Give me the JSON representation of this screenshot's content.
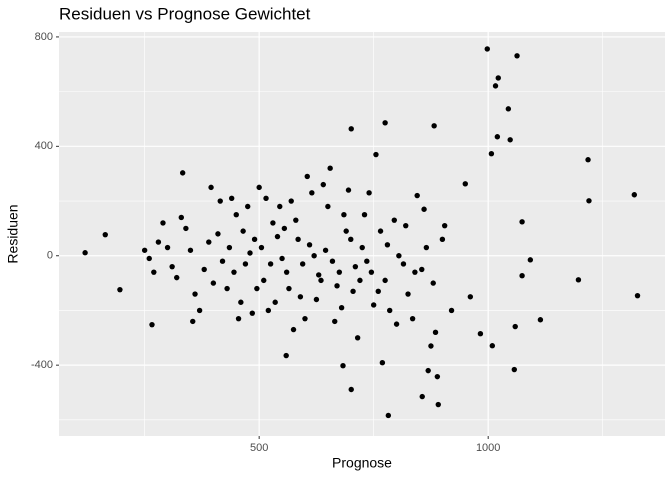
{
  "chart_data": {
    "type": "scatter",
    "title": "Residuen vs Prognose Gewichtet",
    "x_label": "Prognose",
    "y_label": "Residuen",
    "color": "#000000",
    "panel_color": "#ebebeb",
    "grid": true,
    "xlim": [
      63,
      1386
    ],
    "ylim": [
      -659,
      818
    ],
    "xticks": [
      500,
      1000
    ],
    "yticks": [
      -400,
      0,
      400,
      800
    ],
    "xminor": [
      250,
      750,
      1250
    ],
    "yminor": [
      -600,
      -200,
      200,
      600
    ],
    "x": [
      120,
      164,
      196,
      998,
      1063,
      1022,
      1016,
      1044,
      1048,
      1020,
      1007,
      1218,
      1319,
      1220,
      1326,
      1197,
      1114,
      1059,
      1057,
      983,
      1009,
      889,
      869,
      856,
      891,
      782,
      701,
      769,
      683,
      775,
      701,
      882,
      950,
      1074,
      1092,
      1074,
      961,
      559,
      266,
      333,
      350,
      380,
      410,
      430,
      450,
      470,
      490,
      510,
      530,
      550,
      570,
      590,
      610,
      630,
      650,
      670,
      690,
      710,
      730,
      750,
      320,
      340,
      360,
      390,
      420,
      440,
      460,
      480,
      500,
      520,
      540,
      560,
      580,
      600,
      620,
      640,
      660,
      680,
      700,
      720,
      740,
      760,
      780,
      800,
      820,
      840,
      860,
      880,
      900,
      920,
      300,
      310,
      330,
      370,
      400,
      415,
      445,
      465,
      485,
      505,
      525,
      545,
      565,
      585,
      605,
      625,
      645,
      665,
      685,
      705,
      725,
      745,
      765,
      785,
      805,
      825,
      845,
      865,
      885,
      905,
      250,
      270,
      290,
      260,
      280,
      355,
      395,
      435,
      455,
      475,
      495,
      515,
      535,
      555,
      575,
      595,
      615,
      635,
      655,
      675,
      695,
      715,
      735,
      755,
      775,
      795,
      815,
      835,
      855,
      875
    ],
    "y": [
      11,
      77,
      -124,
      756,
      731,
      650,
      621,
      537,
      424,
      435,
      373,
      351,
      223,
      201,
      -146,
      -88,
      -234,
      -259,
      -416,
      -285,
      -329,
      -442,
      -420,
      -515,
      -544,
      -584,
      -489,
      -391,
      -402,
      486,
      464,
      475,
      263,
      124,
      -15,
      -73,
      -150,
      -365,
      -252,
      303,
      20,
      -50,
      80,
      -120,
      150,
      -30,
      60,
      -90,
      120,
      -10,
      200,
      -150,
      40,
      -70,
      180,
      -110,
      90,
      -40,
      150,
      -180,
      -80,
      100,
      -140,
      50,
      -20,
      210,
      -170,
      10,
      250,
      -200,
      70,
      -60,
      130,
      -230,
      0,
      260,
      -20,
      -190,
      60,
      -90,
      230,
      -130,
      40,
      -250,
      110,
      -60,
      170,
      -100,
      60,
      -200,
      30,
      -40,
      140,
      -200,
      -100,
      200,
      -60,
      90,
      -210,
      30,
      -30,
      180,
      -120,
      60,
      290,
      -160,
      20,
      -240,
      150,
      -130,
      30,
      -60,
      90,
      -200,
      0,
      -140,
      220,
      30,
      -280,
      110,
      20,
      -60,
      120,
      -10,
      50,
      -240,
      250,
      30,
      -230,
      180,
      -120,
      210,
      -170,
      100,
      -270,
      -30,
      230,
      -90,
      320,
      -60,
      240,
      -300,
      -20,
      370,
      -90,
      130,
      -30,
      -230,
      -50,
      -330
    ]
  }
}
